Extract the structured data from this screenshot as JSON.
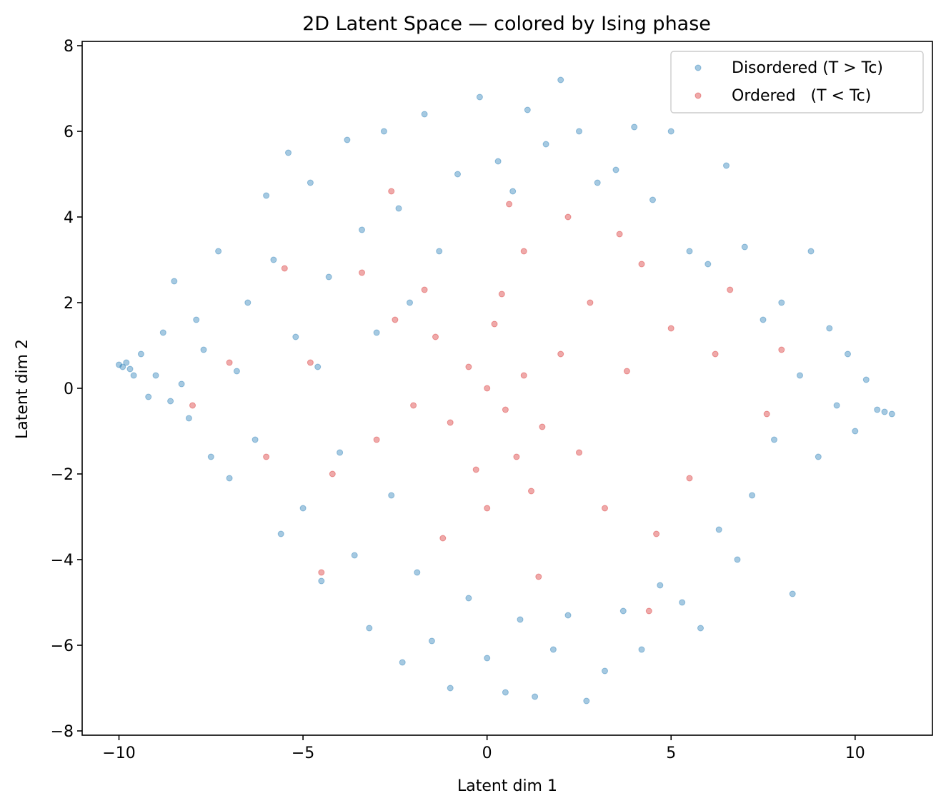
{
  "chart_data": {
    "type": "scatter",
    "title": "2D Latent Space — colored by Ising phase",
    "xlabel": "Latent dim 1",
    "ylabel": "Latent dim 2",
    "xlim": [
      -11.0,
      12.1
    ],
    "ylim": [
      -8.1,
      8.1
    ],
    "xticks": [
      -10,
      -5,
      0,
      5,
      10
    ],
    "xtick_labels": [
      "−10",
      "−5",
      "0",
      "5",
      "10"
    ],
    "yticks": [
      -8,
      -6,
      -4,
      -2,
      0,
      2,
      4,
      6,
      8
    ],
    "ytick_labels": [
      "−8",
      "−6",
      "−4",
      "−2",
      "0",
      "2",
      "4",
      "6",
      "8"
    ],
    "grid": false,
    "legend_position": "top-right",
    "series": [
      {
        "name": "Disordered (T > Tc)",
        "color": "#1f77b4",
        "alpha": 0.4,
        "points": [
          [
            -10.0,
            0.55
          ],
          [
            -9.9,
            0.5
          ],
          [
            -9.8,
            0.6
          ],
          [
            -9.7,
            0.45
          ],
          [
            -9.6,
            0.3
          ],
          [
            -9.4,
            0.8
          ],
          [
            -9.2,
            -0.2
          ],
          [
            -9.0,
            0.3
          ],
          [
            -8.8,
            1.3
          ],
          [
            -8.6,
            -0.3
          ],
          [
            -8.5,
            2.5
          ],
          [
            -8.3,
            0.1
          ],
          [
            -8.1,
            -0.7
          ],
          [
            -7.9,
            1.6
          ],
          [
            -7.7,
            0.9
          ],
          [
            -7.5,
            -1.6
          ],
          [
            -7.3,
            3.2
          ],
          [
            -7.0,
            -2.1
          ],
          [
            -6.8,
            0.4
          ],
          [
            -6.5,
            2.0
          ],
          [
            -6.3,
            -1.2
          ],
          [
            -6.0,
            4.5
          ],
          [
            -5.8,
            3.0
          ],
          [
            -5.6,
            -3.4
          ],
          [
            -5.4,
            5.5
          ],
          [
            -5.2,
            1.2
          ],
          [
            -5.0,
            -2.8
          ],
          [
            -4.8,
            4.8
          ],
          [
            -4.6,
            0.5
          ],
          [
            -4.5,
            -4.5
          ],
          [
            -4.3,
            2.6
          ],
          [
            -4.0,
            -1.5
          ],
          [
            -3.8,
            5.8
          ],
          [
            -3.6,
            -3.9
          ],
          [
            -3.4,
            3.7
          ],
          [
            -3.2,
            -5.6
          ],
          [
            -3.0,
            1.3
          ],
          [
            -2.8,
            6.0
          ],
          [
            -2.6,
            -2.5
          ],
          [
            -2.4,
            4.2
          ],
          [
            -2.3,
            -6.4
          ],
          [
            -2.1,
            2.0
          ],
          [
            -1.9,
            -4.3
          ],
          [
            -1.7,
            6.4
          ],
          [
            -1.5,
            -5.9
          ],
          [
            -1.3,
            3.2
          ],
          [
            -1.0,
            -7.0
          ],
          [
            -0.8,
            5.0
          ],
          [
            -0.5,
            -4.9
          ],
          [
            -0.2,
            6.8
          ],
          [
            0.0,
            -6.3
          ],
          [
            0.3,
            5.3
          ],
          [
            0.5,
            -7.1
          ],
          [
            0.7,
            4.6
          ],
          [
            0.9,
            -5.4
          ],
          [
            1.1,
            6.5
          ],
          [
            1.3,
            -7.2
          ],
          [
            1.6,
            5.7
          ],
          [
            1.8,
            -6.1
          ],
          [
            2.0,
            7.2
          ],
          [
            2.2,
            -5.3
          ],
          [
            2.5,
            6.0
          ],
          [
            2.7,
            -7.3
          ],
          [
            3.0,
            4.8
          ],
          [
            3.2,
            -6.6
          ],
          [
            3.5,
            5.1
          ],
          [
            3.7,
            -5.2
          ],
          [
            4.0,
            6.1
          ],
          [
            4.2,
            -6.1
          ],
          [
            4.5,
            4.4
          ],
          [
            4.7,
            -4.6
          ],
          [
            5.0,
            6.0
          ],
          [
            5.3,
            -5.0
          ],
          [
            5.5,
            3.2
          ],
          [
            5.8,
            -5.6
          ],
          [
            6.0,
            2.9
          ],
          [
            6.3,
            -3.3
          ],
          [
            6.5,
            5.2
          ],
          [
            6.8,
            -4.0
          ],
          [
            7.0,
            3.3
          ],
          [
            7.2,
            -2.5
          ],
          [
            7.5,
            1.6
          ],
          [
            7.8,
            -1.2
          ],
          [
            8.0,
            2.0
          ],
          [
            8.3,
            -4.8
          ],
          [
            8.5,
            0.3
          ],
          [
            8.8,
            3.2
          ],
          [
            9.0,
            -1.6
          ],
          [
            9.3,
            1.4
          ],
          [
            9.5,
            -0.4
          ],
          [
            9.8,
            0.8
          ],
          [
            10.0,
            -1.0
          ],
          [
            10.3,
            0.2
          ],
          [
            10.6,
            -0.5
          ],
          [
            10.8,
            -0.55
          ],
          [
            11.0,
            -0.6
          ]
        ]
      },
      {
        "name": "Ordered   (T < Tc)",
        "color": "#d62728",
        "alpha": 0.4,
        "points": [
          [
            0.0,
            0.0
          ],
          [
            0.5,
            -0.5
          ],
          [
            -0.5,
            0.5
          ],
          [
            1.0,
            0.3
          ],
          [
            -1.0,
            -0.8
          ],
          [
            0.2,
            1.5
          ],
          [
            0.8,
            -1.6
          ],
          [
            -1.4,
            1.2
          ],
          [
            1.5,
            -0.9
          ],
          [
            -0.3,
            -1.9
          ],
          [
            2.0,
            0.8
          ],
          [
            -2.0,
            -0.4
          ],
          [
            0.4,
            2.2
          ],
          [
            1.2,
            -2.4
          ],
          [
            -1.7,
            2.3
          ],
          [
            2.5,
            -1.5
          ],
          [
            -2.5,
            1.6
          ],
          [
            0.0,
            -2.8
          ],
          [
            2.8,
            2.0
          ],
          [
            -3.0,
            -1.2
          ],
          [
            1.0,
            3.2
          ],
          [
            3.2,
            -2.8
          ],
          [
            -3.4,
            2.7
          ],
          [
            -1.2,
            -3.5
          ],
          [
            3.8,
            0.4
          ],
          [
            4.2,
            2.9
          ],
          [
            -4.2,
            -2.0
          ],
          [
            0.6,
            4.3
          ],
          [
            1.4,
            -4.4
          ],
          [
            5.0,
            1.4
          ],
          [
            -4.8,
            0.6
          ],
          [
            -2.6,
            4.6
          ],
          [
            5.5,
            -2.1
          ],
          [
            -5.5,
            2.8
          ],
          [
            2.2,
            4.0
          ],
          [
            4.6,
            -3.4
          ],
          [
            6.2,
            0.8
          ],
          [
            -6.0,
            -1.6
          ],
          [
            -7.0,
            0.6
          ],
          [
            -8.0,
            -0.4
          ],
          [
            6.6,
            2.3
          ],
          [
            7.6,
            -0.6
          ],
          [
            8.0,
            0.9
          ],
          [
            -4.5,
            -4.3
          ],
          [
            4.4,
            -5.2
          ],
          [
            3.6,
            3.6
          ]
        ]
      }
    ]
  }
}
